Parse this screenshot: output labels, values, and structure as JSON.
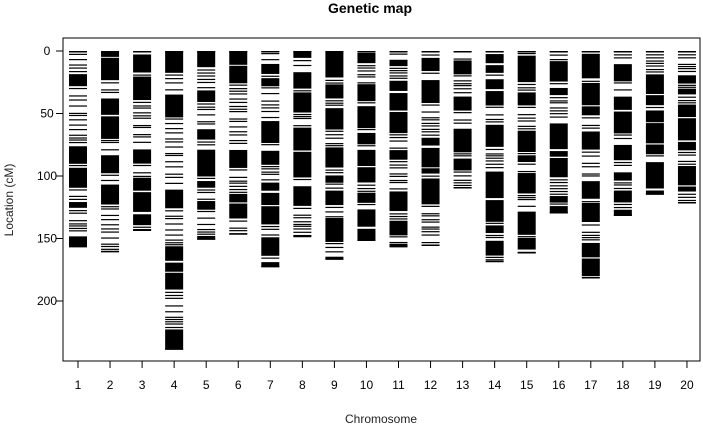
{
  "chart_data": {
    "type": "genetic_map",
    "title": "Genetic map",
    "xlabel": "Chromosome",
    "ylabel": "Location (cM)",
    "categories": [
      "1",
      "2",
      "3",
      "4",
      "5",
      "6",
      "7",
      "8",
      "9",
      "10",
      "11",
      "12",
      "13",
      "14",
      "15",
      "16",
      "17",
      "18",
      "19",
      "20"
    ],
    "chromosome_lengths_cM": [
      157,
      161,
      144,
      239,
      151,
      147,
      173,
      149,
      167,
      152,
      157,
      156,
      110,
      169,
      162,
      130,
      182,
      132,
      115,
      122
    ],
    "y_ticks": [
      0,
      50,
      100,
      150,
      200
    ],
    "y_reversed": true,
    "ylim": [
      0,
      246
    ],
    "grid": false,
    "marker_color": "#000000"
  }
}
